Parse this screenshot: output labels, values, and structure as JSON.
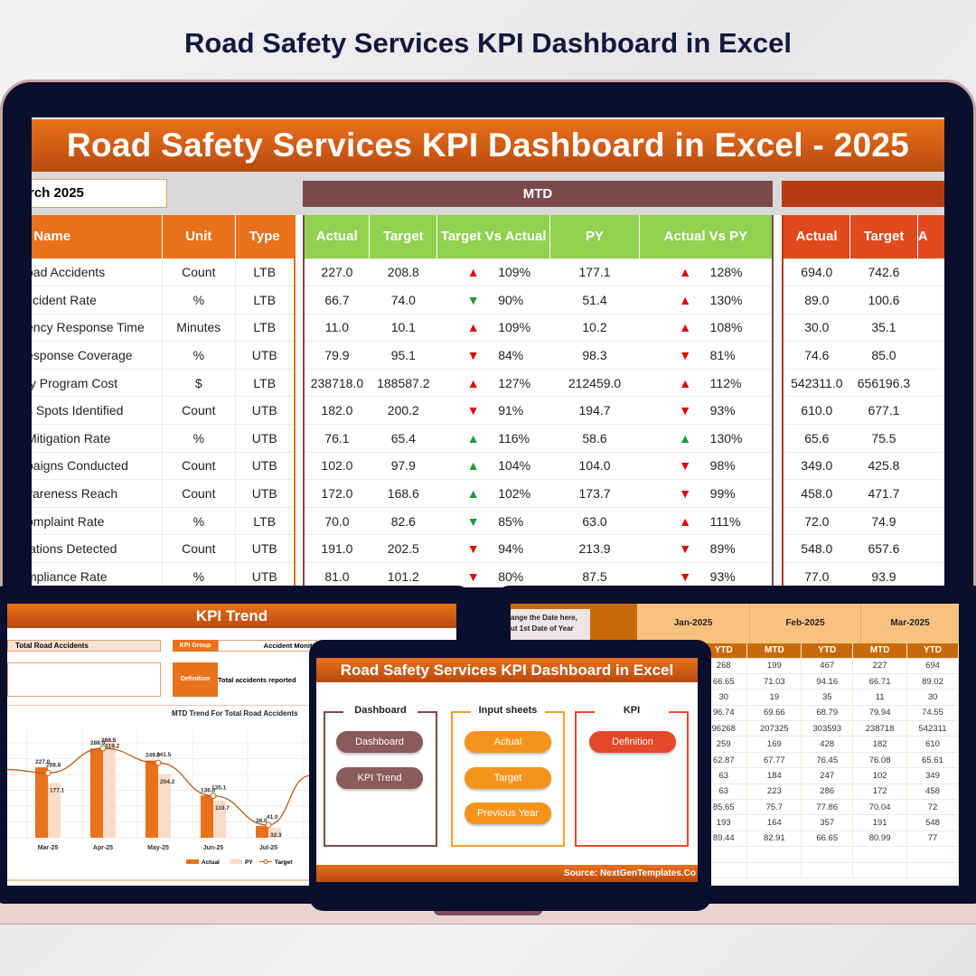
{
  "page_title": "Road Safety Services KPI Dashboard in Excel",
  "dashboard": {
    "header": "Road Safety Services KPI Dashboard in Excel - 2025",
    "month": "rch 2025",
    "mtd_label": "MTD",
    "columns": [
      "I Name",
      "Unit",
      "Type",
      "Actual",
      "Target",
      "Target Vs Actual",
      "PY",
      "Actual Vs PY",
      "Actual",
      "Target",
      "A"
    ],
    "colors": {
      "orange": "#e8711b",
      "green_header": "#92d050",
      "mtd": "#7a4a4a",
      "ytd": "#e04a1e",
      "up_bad": "#e00000",
      "good": "#1a9a3a"
    },
    "rows": [
      [
        "oad Accidents",
        "Count",
        "LTB",
        "227.0",
        "208.8",
        "up-red",
        "109%",
        "177.1",
        "up-red",
        "128%",
        "694.0",
        "742.6"
      ],
      [
        "ccident Rate",
        "%",
        "LTB",
        "66.7",
        "74.0",
        "down-green",
        "90%",
        "51.4",
        "up-red",
        "130%",
        "89.0",
        "100.6"
      ],
      [
        "ency Response Time",
        "Minutes",
        "LTB",
        "11.0",
        "10.1",
        "up-red",
        "109%",
        "10.2",
        "up-red",
        "108%",
        "30.0",
        "35.1"
      ],
      [
        "esponse Coverage",
        "%",
        "UTB",
        "79.9",
        "95.1",
        "down-red",
        "84%",
        "98.3",
        "down-red",
        "81%",
        "74.6",
        "85.0"
      ],
      [
        "ty Program Cost",
        "$",
        "LTB",
        "238718.0",
        "188587.2",
        "up-red",
        "127%",
        "212459.0",
        "up-red",
        "112%",
        "542311.0",
        "656196.3"
      ],
      [
        "s Spots Identified",
        "Count",
        "UTB",
        "182.0",
        "200.2",
        "down-red",
        "91%",
        "194.7",
        "down-red",
        "93%",
        "610.0",
        "677.1"
      ],
      [
        "Mitigation Rate",
        "%",
        "UTB",
        "76.1",
        "65.4",
        "up-green",
        "116%",
        "58.6",
        "up-green",
        "130%",
        "65.6",
        "75.5"
      ],
      [
        "paigns Conducted",
        "Count",
        "UTB",
        "102.0",
        "97.9",
        "up-green",
        "104%",
        "104.0",
        "down-red",
        "98%",
        "349.0",
        "425.8"
      ],
      [
        "vareness Reach",
        "Count",
        "UTB",
        "172.0",
        "168.6",
        "up-green",
        "102%",
        "173.7",
        "down-red",
        "99%",
        "458.0",
        "471.7"
      ],
      [
        "omplaint Rate",
        "%",
        "LTB",
        "70.0",
        "82.6",
        "down-green",
        "85%",
        "63.0",
        "up-red",
        "111%",
        "72.0",
        "74.9"
      ],
      [
        "lations Detected",
        "Count",
        "UTB",
        "191.0",
        "202.5",
        "down-red",
        "94%",
        "213.9",
        "down-red",
        "89%",
        "548.0",
        "657.6"
      ],
      [
        "mpliance Rate",
        "%",
        "UTB",
        "81.0",
        "101.2",
        "down-red",
        "80%",
        "87.5",
        "down-red",
        "93%",
        "77.0",
        "93.9"
      ]
    ]
  },
  "trend": {
    "header": "KPI Trend",
    "kpi_name": "Total Road Accidents",
    "kpi_group_label": "KPI Group",
    "kpi_group": "Accident Monito",
    "definition_label": "Definition",
    "definition": "Total accidents reported"
  },
  "chart_data": {
    "type": "bar",
    "title": "MTD Trend For Total Road Accidents",
    "categories": [
      "Mar-25",
      "Apr-25",
      "May-25",
      "Jun-25",
      "Jul-25"
    ],
    "series": [
      {
        "name": "Actual",
        "values": [
          227.0,
          288.0,
          249.0,
          136.0,
          38.0
        ],
        "color": "#e8711b"
      },
      {
        "name": "PY",
        "values": [
          177.1,
          319.2,
          204.2,
          119.7,
          32.3
        ],
        "color": "#fbdcc8"
      },
      {
        "name": "Target",
        "values": [
          208.8,
          288.5,
          241.5,
          135.1,
          41.0
        ],
        "color": "#b85a1a",
        "kind": "line"
      }
    ],
    "grid": true,
    "legend": "bottom"
  },
  "home": {
    "header": "Road Safety Services KPI Dashboard in Excel",
    "groups": [
      {
        "title": "Dashboard",
        "buttons": [
          "Dashboard",
          "KPI Trend"
        ]
      },
      {
        "title": "Input sheets",
        "buttons": [
          "Actual",
          "Target",
          "Previous Year"
        ]
      },
      {
        "title": "KPI",
        "buttons": [
          "Definition"
        ]
      }
    ],
    "footer": "Source: NextGenTemplates.Co"
  },
  "input": {
    "callout": [
      "ange the Date here,",
      "ut 1st Date of Year"
    ],
    "months": [
      "Jan-2025",
      "Feb-2025",
      "Mar-2025"
    ],
    "subheaders": [
      "YTD",
      "MTD",
      "YTD",
      "MTD",
      "YTD"
    ],
    "rows": [
      [
        "268",
        "199",
        "467",
        "227",
        "694"
      ],
      [
        "66.65",
        "71.03",
        "94.16",
        "66.71",
        "89.02"
      ],
      [
        "30",
        "19",
        "35",
        "11",
        "30"
      ],
      [
        "96.74",
        "69.66",
        "68.79",
        "79.94",
        "74.55"
      ],
      [
        "96268",
        "207325",
        "303593",
        "238718",
        "542311"
      ],
      [
        "259",
        "169",
        "428",
        "182",
        "610"
      ],
      [
        "62.87",
        "67.77",
        "76.45",
        "76.08",
        "65.61"
      ],
      [
        "63",
        "184",
        "247",
        "102",
        "349"
      ],
      [
        "63",
        "223",
        "286",
        "172",
        "458"
      ],
      [
        "85.65",
        "75.7",
        "77.86",
        "70.04",
        "72"
      ],
      [
        "193",
        "164",
        "357",
        "191",
        "548"
      ],
      [
        "89.44",
        "82.91",
        "66.65",
        "80.99",
        "77"
      ]
    ]
  }
}
